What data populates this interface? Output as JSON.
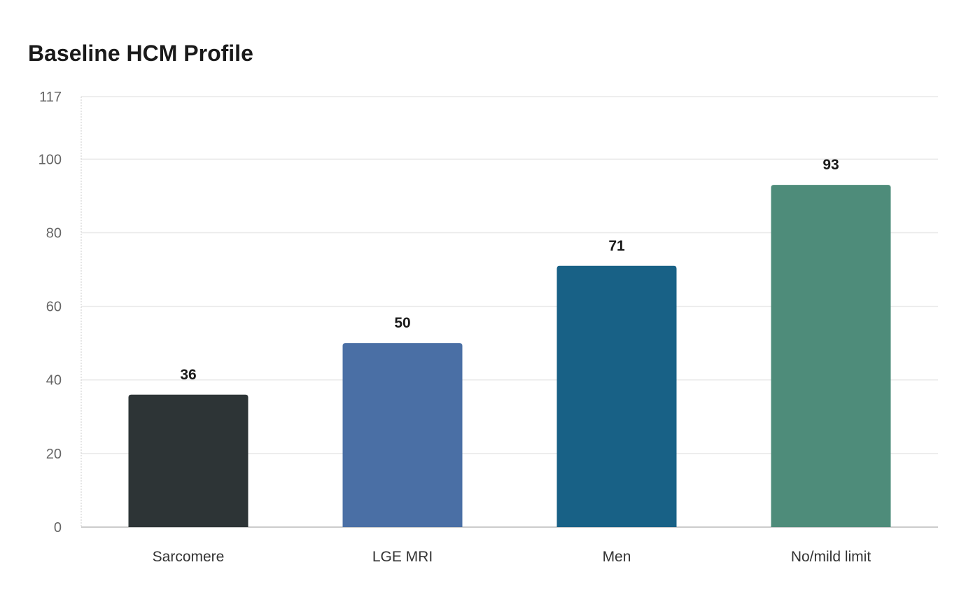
{
  "chart_data": {
    "type": "bar",
    "title": "Baseline HCM Profile",
    "categories": [
      "Sarcomere",
      "LGE MRI",
      "Men",
      "No/mild limit"
    ],
    "values": [
      36,
      50,
      71,
      93
    ],
    "colors": [
      "#2d3436",
      "#4a6fa5",
      "#186186",
      "#4e8c7a"
    ],
    "y_ticks": [
      0,
      20,
      40,
      60,
      80,
      100,
      117
    ],
    "ylim": [
      0,
      117
    ],
    "xlabel": "",
    "ylabel": "",
    "grid": true,
    "legend": "none"
  }
}
